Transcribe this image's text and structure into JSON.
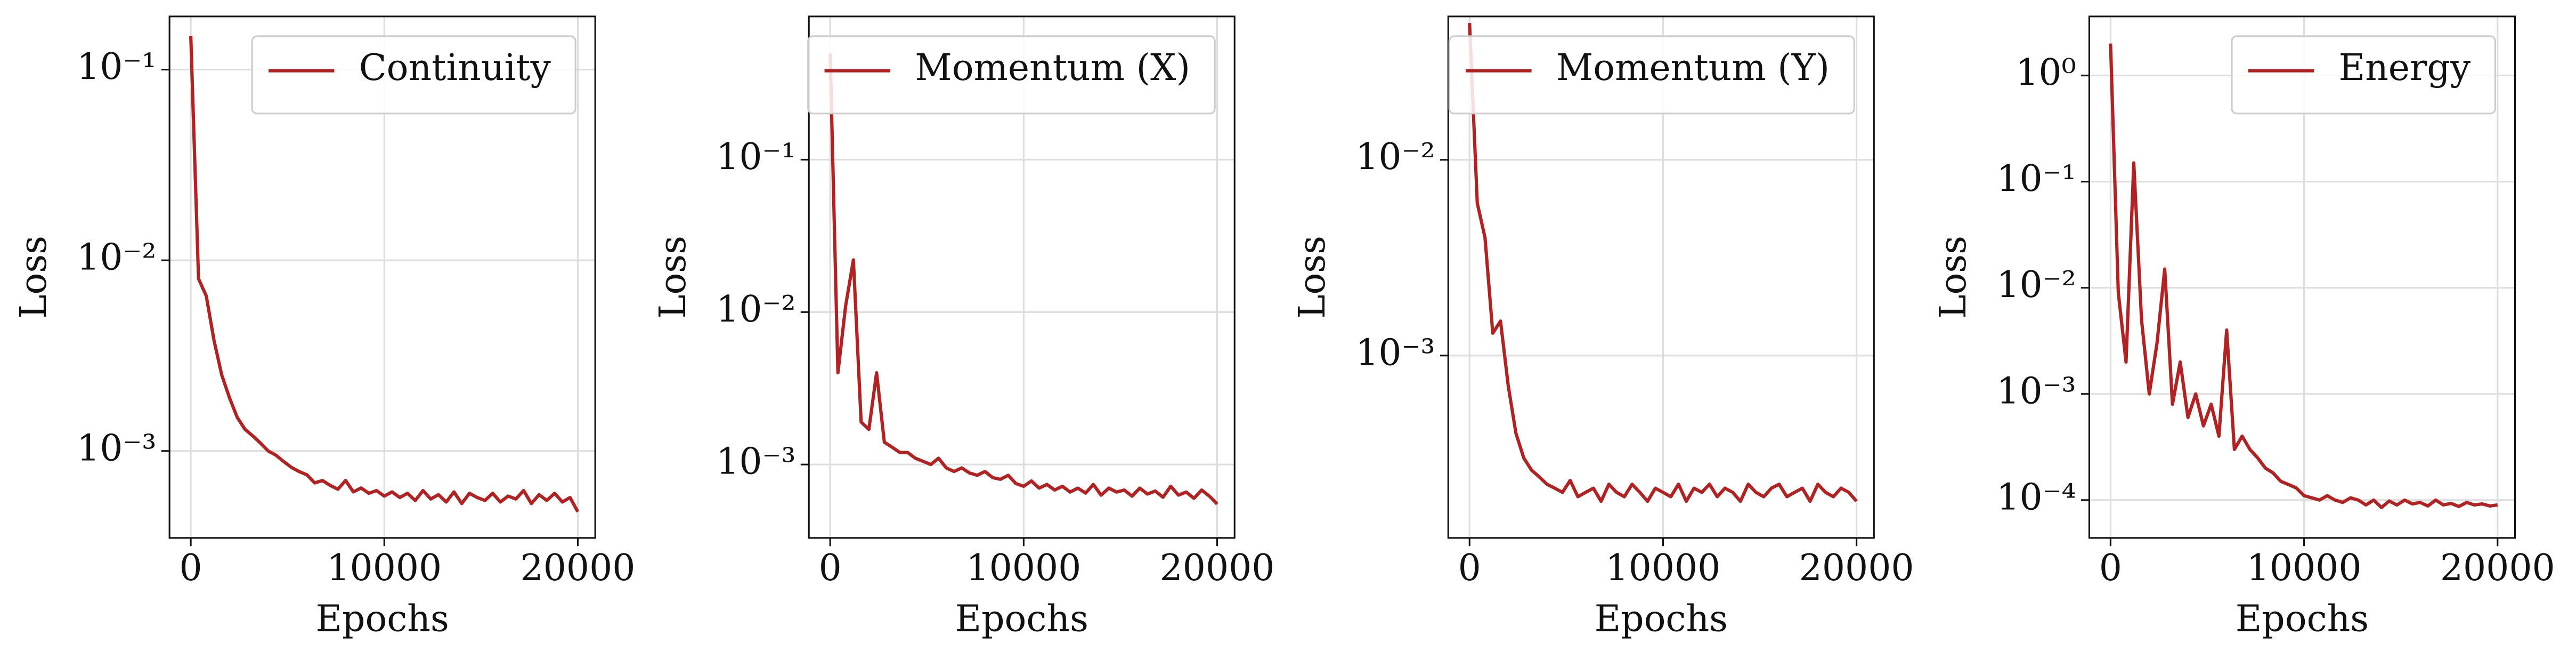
{
  "chart_data": [
    {
      "type": "line",
      "yscale": "log",
      "grid": true,
      "legend": "upper right",
      "x_label": "Epochs",
      "y_label": "Loss",
      "xlim": [
        -1100,
        20900
      ],
      "xticks": [
        0,
        10000,
        20000
      ],
      "ylim": [
        0.00035,
        0.19
      ],
      "yticks": [
        {
          "value": 0.001,
          "label": "10⁻³"
        },
        {
          "value": 0.01,
          "label": "10⁻²"
        },
        {
          "value": 0.1,
          "label": "10⁻¹"
        }
      ],
      "x": [
        0,
        400,
        800,
        1200,
        1600,
        2000,
        2400,
        2800,
        3200,
        3600,
        4000,
        4400,
        4800,
        5200,
        5600,
        6000,
        6400,
        6800,
        7200,
        7600,
        8000,
        8400,
        8800,
        9200,
        9600,
        10000,
        10400,
        10800,
        11200,
        11600,
        12000,
        12400,
        12800,
        13200,
        13600,
        14000,
        14400,
        14800,
        15200,
        15600,
        16000,
        16400,
        16800,
        17200,
        17600,
        18000,
        18400,
        18800,
        19200,
        19600,
        20000
      ],
      "series": [
        {
          "name": "Continuity",
          "color": "#b22222",
          "values": [
            0.15,
            0.008,
            0.0065,
            0.0038,
            0.0025,
            0.0019,
            0.0015,
            0.0013,
            0.0012,
            0.0011,
            0.001,
            0.00095,
            0.00088,
            0.00082,
            0.00078,
            0.00075,
            0.00068,
            0.0007,
            0.00066,
            0.00063,
            0.0007,
            0.00061,
            0.00064,
            0.0006,
            0.00062,
            0.00058,
            0.00061,
            0.00057,
            0.0006,
            0.00055,
            0.00062,
            0.00056,
            0.00059,
            0.00054,
            0.00061,
            0.00053,
            0.0006,
            0.00057,
            0.00055,
            0.0006,
            0.00054,
            0.00058,
            0.00056,
            0.00062,
            0.00053,
            0.00059,
            0.00055,
            0.0006,
            0.00054,
            0.00057,
            0.00048
          ]
        }
      ]
    },
    {
      "type": "line",
      "yscale": "log",
      "grid": true,
      "legend": "upper right",
      "x_label": "Epochs",
      "y_label": "Loss",
      "xlim": [
        -1100,
        20900
      ],
      "xticks": [
        0,
        10000,
        20000
      ],
      "ylim": [
        0.00033,
        0.87
      ],
      "yticks": [
        {
          "value": 0.001,
          "label": "10⁻³"
        },
        {
          "value": 0.01,
          "label": "10⁻²"
        },
        {
          "value": 0.1,
          "label": "10⁻¹"
        }
      ],
      "x": [
        0,
        400,
        800,
        1200,
        1600,
        2000,
        2400,
        2800,
        3200,
        3600,
        4000,
        4400,
        4800,
        5200,
        5600,
        6000,
        6400,
        6800,
        7200,
        7600,
        8000,
        8400,
        8800,
        9200,
        9600,
        10000,
        10400,
        10800,
        11200,
        11600,
        12000,
        12400,
        12800,
        13200,
        13600,
        14000,
        14400,
        14800,
        15200,
        15600,
        16000,
        16400,
        16800,
        17200,
        17600,
        18000,
        18400,
        18800,
        19200,
        19600,
        20000
      ],
      "series": [
        {
          "name": "Momentum (X)",
          "color": "#b22222",
          "values": [
            0.5,
            0.004,
            0.011,
            0.022,
            0.0019,
            0.0017,
            0.004,
            0.0014,
            0.0013,
            0.0012,
            0.0012,
            0.0011,
            0.00105,
            0.001,
            0.0011,
            0.00095,
            0.0009,
            0.00095,
            0.00088,
            0.00085,
            0.0009,
            0.00082,
            0.0008,
            0.00085,
            0.00075,
            0.00072,
            0.00078,
            0.0007,
            0.00074,
            0.00068,
            0.00072,
            0.00066,
            0.0007,
            0.00065,
            0.00074,
            0.00063,
            0.0007,
            0.00066,
            0.00068,
            0.00062,
            0.0007,
            0.00064,
            0.00067,
            0.00061,
            0.00072,
            0.00063,
            0.00066,
            0.0006,
            0.00068,
            0.00062,
            0.00055
          ]
        }
      ]
    },
    {
      "type": "line",
      "yscale": "log",
      "grid": true,
      "legend": "upper right",
      "x_label": "Epochs",
      "y_label": "Loss",
      "xlim": [
        -1100,
        20900
      ],
      "xticks": [
        0,
        10000,
        20000
      ],
      "ylim": [
        0.000117,
        0.054
      ],
      "yticks": [
        {
          "value": 0.001,
          "label": "10⁻³"
        },
        {
          "value": 0.01,
          "label": "10⁻²"
        }
      ],
      "x": [
        0,
        400,
        800,
        1200,
        1600,
        2000,
        2400,
        2800,
        3200,
        3600,
        4000,
        4400,
        4800,
        5200,
        5600,
        6000,
        6400,
        6800,
        7200,
        7600,
        8000,
        8400,
        8800,
        9200,
        9600,
        10000,
        10400,
        10800,
        11200,
        11600,
        12000,
        12400,
        12800,
        13200,
        13600,
        14000,
        14400,
        14800,
        15200,
        15600,
        16000,
        16400,
        16800,
        17200,
        17600,
        18000,
        18400,
        18800,
        19200,
        19600,
        20000
      ],
      "series": [
        {
          "name": "Momentum (Y)",
          "color": "#b22222",
          "values": [
            0.05,
            0.006,
            0.004,
            0.0013,
            0.0015,
            0.0007,
            0.0004,
            0.0003,
            0.00026,
            0.00024,
            0.00022,
            0.00021,
            0.0002,
            0.00023,
            0.00019,
            0.0002,
            0.00021,
            0.00018,
            0.00022,
            0.0002,
            0.00019,
            0.00022,
            0.0002,
            0.00018,
            0.00021,
            0.0002,
            0.00019,
            0.00022,
            0.00018,
            0.00021,
            0.0002,
            0.00022,
            0.00019,
            0.00021,
            0.0002,
            0.00018,
            0.00022,
            0.0002,
            0.00019,
            0.00021,
            0.00022,
            0.00019,
            0.0002,
            0.00021,
            0.00018,
            0.00022,
            0.0002,
            0.00019,
            0.00021,
            0.0002,
            0.00018
          ]
        }
      ]
    },
    {
      "type": "line",
      "yscale": "log",
      "grid": true,
      "legend": "upper right",
      "x_label": "Epochs",
      "y_label": "Loss",
      "xlim": [
        -1100,
        20900
      ],
      "xticks": [
        0,
        10000,
        20000
      ],
      "ylim": [
        4.4e-05,
        3.6
      ],
      "yticks": [
        {
          "value": 0.0001,
          "label": "10⁻⁴"
        },
        {
          "value": 0.001,
          "label": "10⁻³"
        },
        {
          "value": 0.01,
          "label": "10⁻²"
        },
        {
          "value": 0.1,
          "label": "10⁻¹"
        },
        {
          "value": 1,
          "label": "10⁰"
        }
      ],
      "x": [
        0,
        400,
        800,
        1200,
        1600,
        2000,
        2400,
        2800,
        3200,
        3600,
        4000,
        4400,
        4800,
        5200,
        5600,
        6000,
        6400,
        6800,
        7200,
        7600,
        8000,
        8400,
        8800,
        9200,
        9600,
        10000,
        10400,
        10800,
        11200,
        11600,
        12000,
        12400,
        12800,
        13200,
        13600,
        14000,
        14400,
        14800,
        15200,
        15600,
        16000,
        16400,
        16800,
        17200,
        17600,
        18000,
        18400,
        18800,
        19200,
        19600,
        20000
      ],
      "series": [
        {
          "name": "Energy",
          "color": "#b22222",
          "values": [
            2.0,
            0.009,
            0.002,
            0.15,
            0.005,
            0.001,
            0.003,
            0.015,
            0.0008,
            0.002,
            0.0006,
            0.001,
            0.0005,
            0.0008,
            0.0004,
            0.004,
            0.0003,
            0.0004,
            0.0003,
            0.00025,
            0.0002,
            0.00018,
            0.00015,
            0.00014,
            0.00013,
            0.00011,
            0.000105,
            0.0001,
            0.00011,
            0.0001,
            9.5e-05,
            0.000105,
            0.0001,
            9e-05,
            0.0001,
            8.5e-05,
            9.8e-05,
            9e-05,
            0.0001,
            9.2e-05,
            9.5e-05,
            8.8e-05,
            0.0001,
            9e-05,
            9.3e-05,
            8.7e-05,
            9.5e-05,
            9e-05,
            9.2e-05,
            8.8e-05,
            9e-05
          ]
        }
      ]
    }
  ]
}
